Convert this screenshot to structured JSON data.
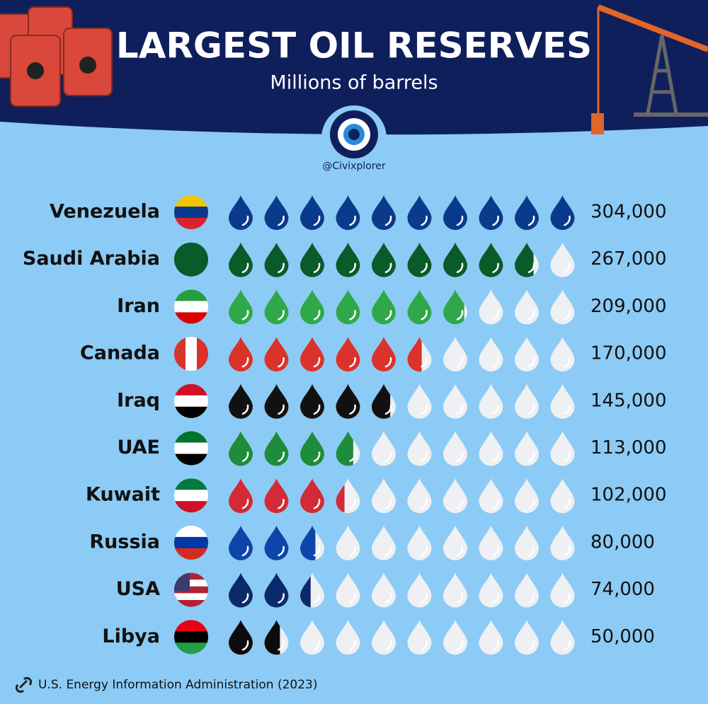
{
  "chart_data": {
    "type": "pictogram",
    "title": "LARGEST OIL RESERVES",
    "subtitle": "Millions of barrels",
    "handle": "@Civixplorer",
    "source": "U.S. Energy Information Administration (2023)",
    "categories": [
      "Venezuela",
      "Saudi Arabia",
      "Iran",
      "Canada",
      "Iraq",
      "UAE",
      "Kuwait",
      "Russia",
      "USA",
      "Libya"
    ],
    "values": [
      304000,
      267000,
      209000,
      170000,
      145000,
      113000,
      102000,
      80000,
      74000,
      50000
    ],
    "value_labels": [
      "304,000",
      "267,000",
      "209,000",
      "170,000",
      "145,000",
      "113,000",
      "102,000",
      "80,000",
      "74,000",
      "50,000"
    ],
    "colors": [
      "#0a3a8c",
      "#0a5a2a",
      "#2fa84a",
      "#d9332b",
      "#111111",
      "#1e8c3a",
      "#d22a36",
      "#0d45a8",
      "#0b2a6b",
      "#0c0c0c"
    ]
  }
}
